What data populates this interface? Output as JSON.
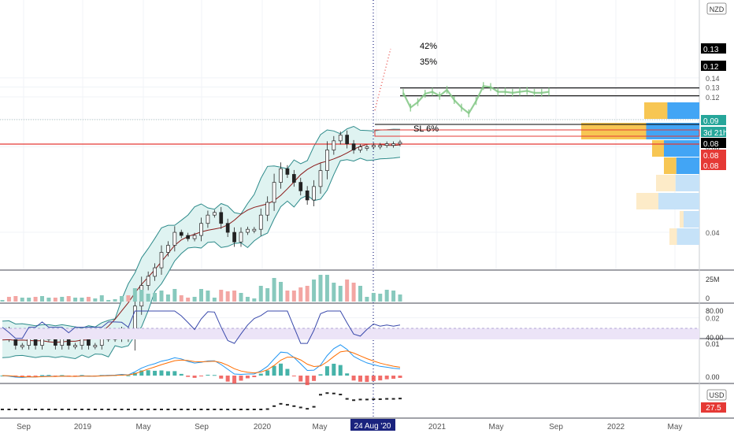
{
  "currency_top": "NZD",
  "currency_bottom": "USD",
  "colors": {
    "up": "#26a69a",
    "down": "#ef5350",
    "bollinger_fill": "#dff3f1",
    "bollinger_line": "#2d8a8a",
    "ma": "#8b1a1a",
    "level_red": "#e53935",
    "rsi_band": "#ece4f7",
    "rsi_line": "#3949ab",
    "macd_line": "#2196f3",
    "signal_line": "#ff6d00",
    "projection": "#81c784",
    "vp_yellow": "#f7c653",
    "vp_blue": "#42a5f5",
    "vp_light_yellow": "#fdebc8",
    "vp_light_blue": "#c6e2f8",
    "date_marker": "#1a237e"
  },
  "x_axis": {
    "tick_labels": [
      "Sep",
      "2019",
      "May",
      "Sep",
      "2020",
      "May",
      "Sep",
      "2021",
      "May",
      "Sep",
      "2022",
      "May"
    ],
    "highlight_label": "24 Aug '20"
  },
  "price_axis": {
    "tick_labels": [
      "0.14",
      "0.13",
      "0.12",
      "0.10",
      "0.08",
      "0.04",
      "0.02"
    ],
    "badges": [
      {
        "text": "0.13",
        "color": "#000000"
      },
      {
        "text": "0.12",
        "color": "#000000"
      },
      {
        "text": "0.09",
        "color": "#26a69a"
      },
      {
        "text": "3d 21h",
        "color": "#26a69a"
      },
      {
        "text": "0.08",
        "color": "#000000"
      },
      {
        "text": "0.08",
        "color": "#e53935"
      },
      {
        "text": "0.08",
        "color": "#e53935"
      }
    ]
  },
  "annotations": {
    "target_1": "42%",
    "target_2": "35%",
    "stop_loss": "SL 6%"
  },
  "volume_axis": [
    "25M",
    "0"
  ],
  "rsi_axis": [
    "80.00",
    "40.00"
  ],
  "macd_axis": [
    "0.01",
    "0.00"
  ],
  "usd_axis": {
    "badge": "27.5"
  },
  "chart_data": {
    "type": "line",
    "series": [
      {
        "values": [
          0.018,
          0.017,
          0.016,
          0.016,
          0.017,
          0.016,
          0.017,
          0.017,
          0.016,
          0.017,
          0.016,
          0.016,
          0.017,
          0.016,
          0.016,
          0.017,
          0.017,
          0.017,
          0.018,
          0.017,
          0.022,
          0.026,
          0.028,
          0.03,
          0.034,
          0.036,
          0.04,
          0.039,
          0.038,
          0.039,
          0.043,
          0.046,
          0.047,
          0.043,
          0.04,
          0.037,
          0.04,
          0.041,
          0.041,
          0.046,
          0.051,
          0.06,
          0.067,
          0.064,
          0.06,
          0.056,
          0.052,
          0.058,
          0.066,
          0.078,
          0.084,
          0.088,
          0.082,
          0.078,
          0.08,
          0.08,
          0.081,
          0.081,
          0.082,
          0.082,
          0.083
        ]
      },
      {
        "values": [
          0.124,
          0.11,
          0.115,
          0.123,
          0.125,
          0.121,
          0.127,
          0.117,
          0.11,
          0.105,
          0.116,
          0.131,
          0.13,
          0.125,
          0.125,
          0.124,
          0.125,
          0.126,
          0.124,
          0.124,
          0.125
        ]
      }
    ],
    "ylim": [
      0.01,
      0.145
    ],
    "levels": {
      "target_1": 0.129,
      "target_2": 0.121,
      "stop_loss": 0.08,
      "entry": 0.085
    }
  }
}
